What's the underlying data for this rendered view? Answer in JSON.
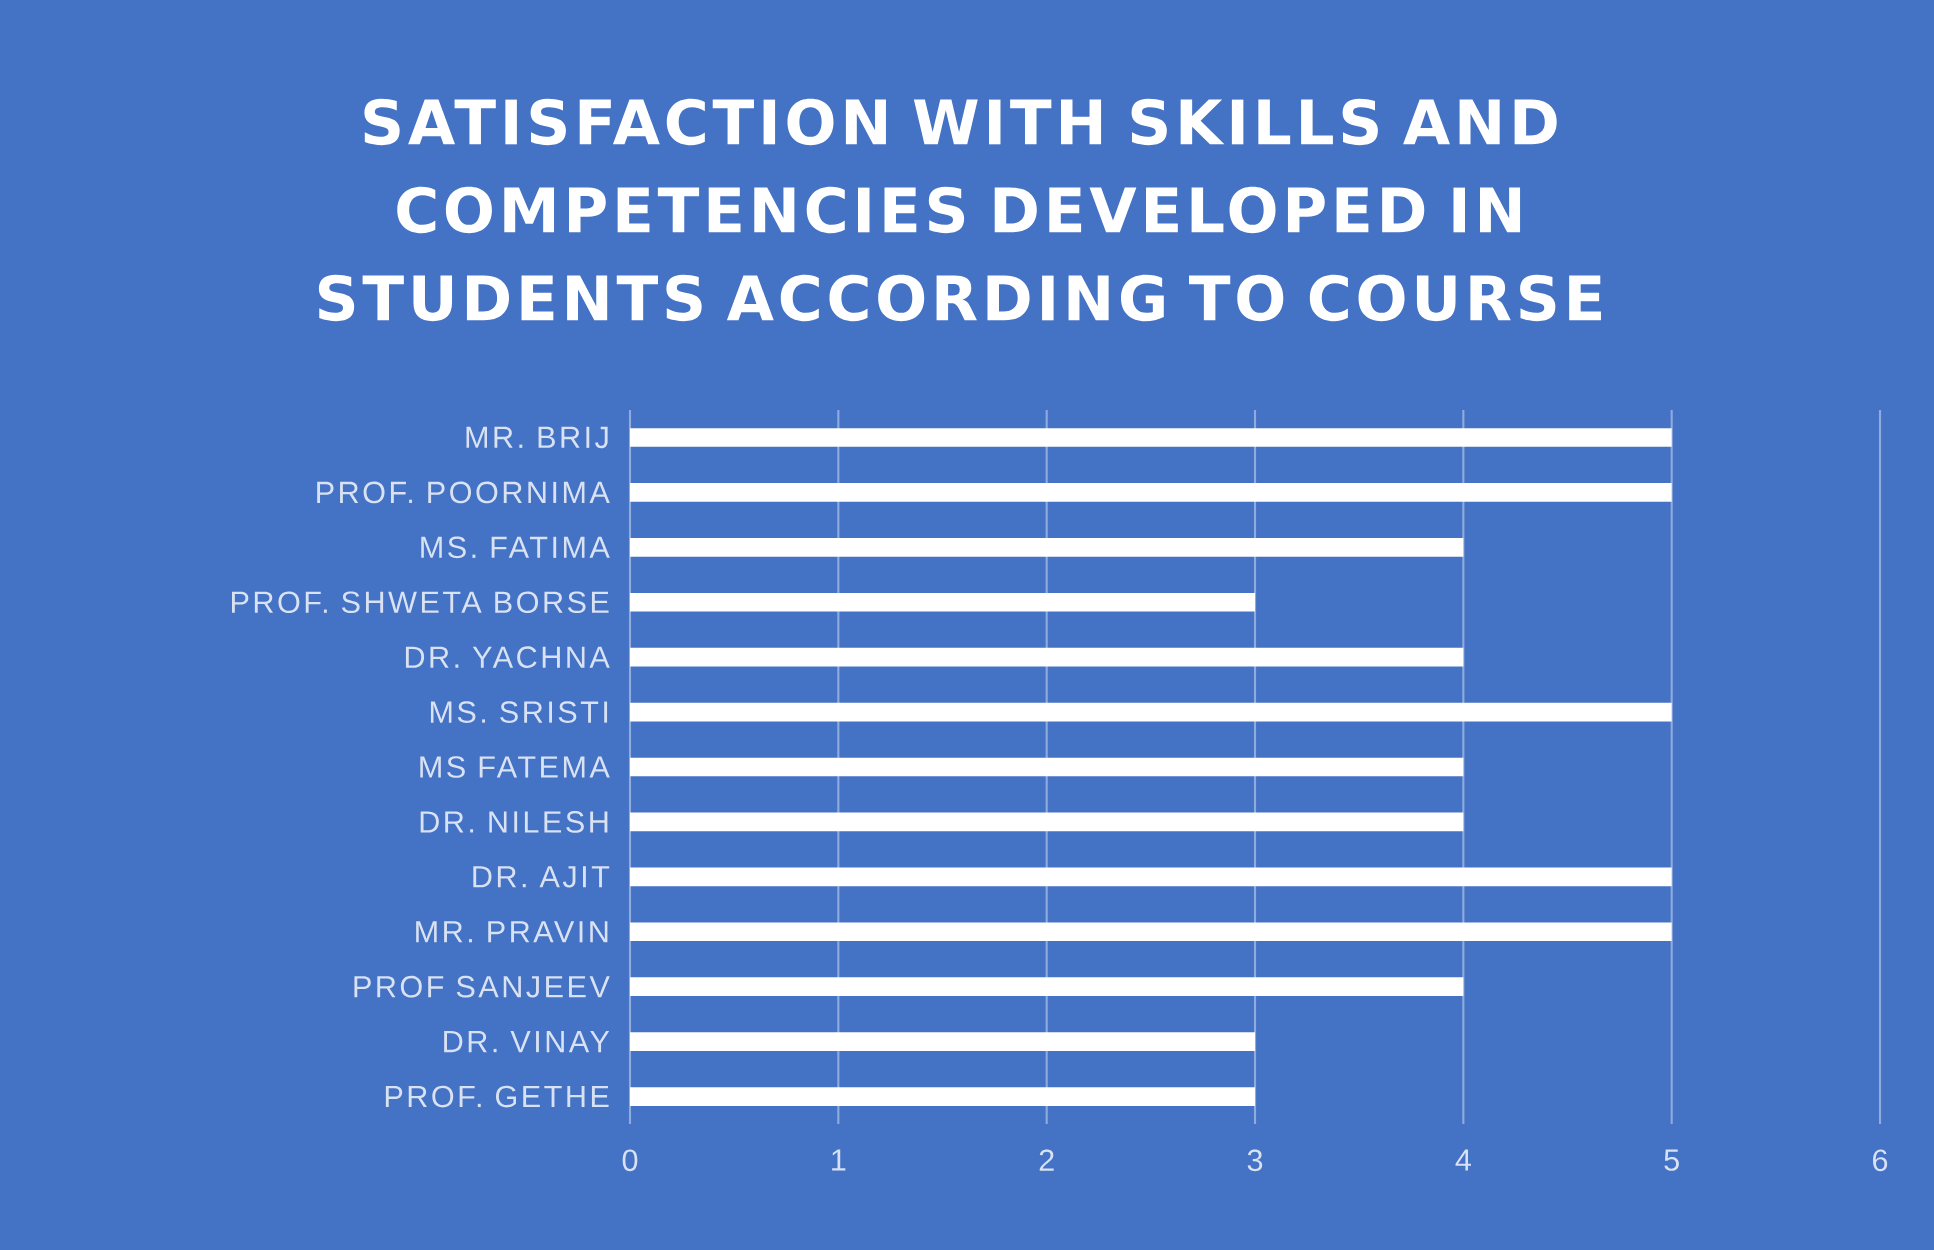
{
  "chart_data": {
    "type": "bar",
    "orientation": "horizontal",
    "title": "SATISFACTION WITH SKILLS AND COMPETENCIES DEVELOPED IN STUDENTS ACCORDING TO COURSE",
    "categories": [
      "MR. BRIJ",
      "PROF. POORNIMA",
      "MS. FATIMA",
      "PROF. SHWETA BORSE",
      "DR. YACHNA",
      "MS. SRISTI",
      "MS FATEMA",
      "DR. NILESH",
      "DR. AJIT",
      "MR. PRAVIN",
      "PROF SANJEEV",
      "DR. VINAY",
      "PROF. GETHE"
    ],
    "values": [
      5,
      5,
      4,
      3,
      4,
      5,
      4,
      4,
      5,
      5,
      4,
      3,
      3
    ],
    "color": "#ffffff",
    "xlim": [
      0,
      6
    ],
    "xticks": [
      0,
      1,
      2,
      3,
      4,
      5,
      6
    ],
    "grid": "x"
  }
}
